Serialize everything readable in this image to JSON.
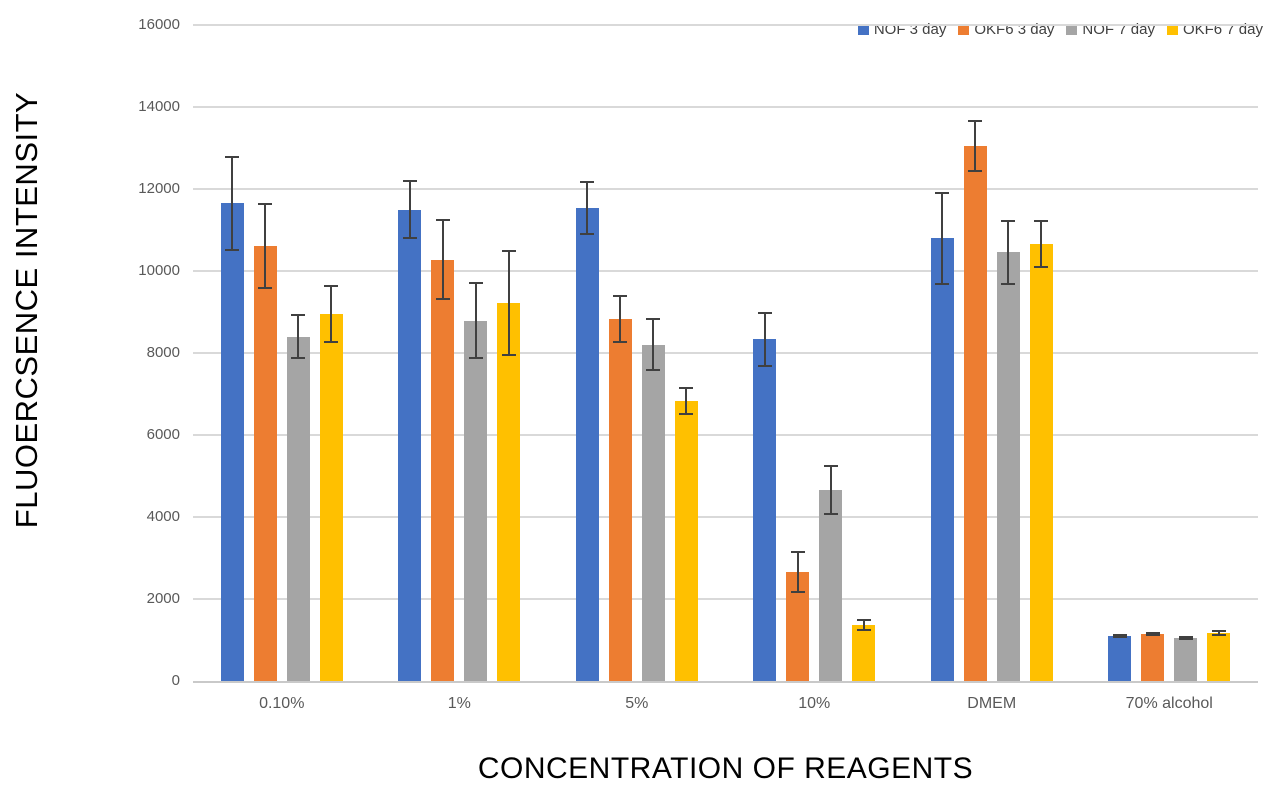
{
  "chart_data": {
    "type": "bar",
    "title": "",
    "xlabel": "CONCENTRATION OF REAGENTS",
    "ylabel": "FLUOERCSENCE INTENSITY",
    "categories": [
      "0.10%",
      "1%",
      "5%",
      "10%",
      "DMEM",
      "70% alcohol"
    ],
    "series": [
      {
        "name": "NOF 3 day",
        "color": "#4472C4",
        "values": [
          11650,
          11500,
          11530,
          8330,
          10800,
          1100
        ],
        "errors": [
          1150,
          730,
          660,
          680,
          1130,
          50
        ]
      },
      {
        "name": "OKF6 3 day",
        "color": "#ED7D31",
        "values": [
          10600,
          10280,
          8830,
          2650,
          13050,
          1150
        ],
        "errors": [
          1050,
          980,
          590,
          510,
          640,
          50
        ]
      },
      {
        "name": "NOF 7 day",
        "color": "#A5A5A5",
        "values": [
          8400,
          8790,
          8200,
          4660,
          10460,
          1050
        ],
        "errors": [
          550,
          940,
          650,
          600,
          790,
          50
        ]
      },
      {
        "name": "OKF6 7 day",
        "color": "#FFC000",
        "values": [
          8950,
          9220,
          6830,
          1360,
          10660,
          1170
        ],
        "errors": [
          700,
          1300,
          350,
          150,
          590,
          80
        ]
      }
    ],
    "ylim": [
      0,
      16000
    ],
    "yticks": [
      0,
      2000,
      4000,
      6000,
      8000,
      10000,
      12000,
      14000,
      16000
    ],
    "grid": true,
    "legend_position": "top-right",
    "error_bars": true
  },
  "colors": {
    "gridline": "#D9D9D9",
    "axis_line": "#C9C9C9",
    "tick_label": "#595959",
    "category_label": "#595959",
    "legend_text": "#404040",
    "error_bar": "#404040",
    "background": "#FFFFFF"
  }
}
